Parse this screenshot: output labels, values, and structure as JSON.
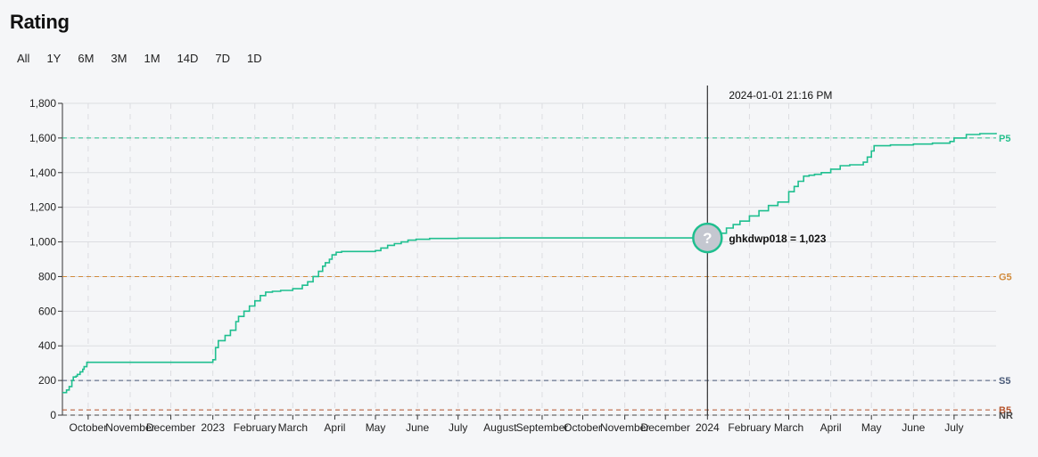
{
  "title": "Rating",
  "ranges": [
    "All",
    "1Y",
    "6M",
    "3M",
    "1M",
    "14D",
    "7D",
    "1D"
  ],
  "colors": {
    "line": "#1fbf8f",
    "P5": "#27c08d",
    "G5": "#d18a3a",
    "S5": "#4a5a78",
    "B5": "#b5522a",
    "NR": "#444444",
    "grid": "#dcdde1",
    "cursor": "#333333"
  },
  "tooltip": {
    "date": "2024-01-01 21:16 PM",
    "label": "ghkdwp018 = 1,023",
    "marker_icon": "question-mark-icon",
    "marker_symbol": "?"
  },
  "chart_data": {
    "type": "line",
    "xlabel": "",
    "ylabel": "",
    "ylim": [
      0,
      1800
    ],
    "yticks": [
      0,
      200,
      400,
      600,
      800,
      1000,
      1200,
      1400,
      1600,
      1800
    ],
    "ytick_labels": [
      "0",
      "200",
      "400",
      "600",
      "800",
      "1,000",
      "1,200",
      "1,400",
      "1,600",
      "1,800"
    ],
    "xlim": [
      "2022-09-12",
      "2024-08-01"
    ],
    "xticks": [
      {
        "date": "2022-10-01",
        "label": "October"
      },
      {
        "date": "2022-11-01",
        "label": "November"
      },
      {
        "date": "2022-12-01",
        "label": "December"
      },
      {
        "date": "2023-01-01",
        "label": "2023"
      },
      {
        "date": "2023-02-01",
        "label": "February"
      },
      {
        "date": "2023-03-01",
        "label": "March"
      },
      {
        "date": "2023-04-01",
        "label": "April"
      },
      {
        "date": "2023-05-01",
        "label": "May"
      },
      {
        "date": "2023-06-01",
        "label": "June"
      },
      {
        "date": "2023-07-01",
        "label": "July"
      },
      {
        "date": "2023-08-01",
        "label": "August"
      },
      {
        "date": "2023-09-01",
        "label": "September"
      },
      {
        "date": "2023-10-01",
        "label": "October"
      },
      {
        "date": "2023-11-01",
        "label": "November"
      },
      {
        "date": "2023-12-01",
        "label": "December"
      },
      {
        "date": "2024-01-01",
        "label": "2024"
      },
      {
        "date": "2024-02-01",
        "label": "February"
      },
      {
        "date": "2024-03-01",
        "label": "March"
      },
      {
        "date": "2024-04-01",
        "label": "April"
      },
      {
        "date": "2024-05-01",
        "label": "May"
      },
      {
        "date": "2024-06-01",
        "label": "June"
      },
      {
        "date": "2024-07-01",
        "label": "July"
      }
    ],
    "thresholds": [
      {
        "label": "P5",
        "value": 1600
      },
      {
        "label": "G5",
        "value": 800
      },
      {
        "label": "S5",
        "value": 200
      },
      {
        "label": "B5",
        "value": 30
      },
      {
        "label": "NR",
        "value": 0
      }
    ],
    "grid": true,
    "series": [
      {
        "x": [
          "2022-09-12",
          "2022-09-15",
          "2022-09-17",
          "2022-09-19",
          "2022-09-20",
          "2022-09-22",
          "2022-09-23",
          "2022-09-25",
          "2022-09-27",
          "2022-09-28",
          "2022-09-30",
          "2022-10-01",
          "2022-11-01",
          "2022-12-01",
          "2022-12-31",
          "2023-01-01",
          "2023-01-03",
          "2023-01-05",
          "2023-01-10",
          "2023-01-14",
          "2023-01-18",
          "2023-01-20",
          "2023-01-24",
          "2023-01-28",
          "2023-02-01",
          "2023-02-05",
          "2023-02-09",
          "2023-02-14",
          "2023-02-20",
          "2023-03-01",
          "2023-03-08",
          "2023-03-12",
          "2023-03-16",
          "2023-03-20",
          "2023-03-23",
          "2023-03-25",
          "2023-03-28",
          "2023-03-30",
          "2023-04-02",
          "2023-04-06",
          "2023-04-10",
          "2023-04-20",
          "2023-05-01",
          "2023-05-05",
          "2023-05-10",
          "2023-05-15",
          "2023-05-20",
          "2023-05-25",
          "2023-05-31",
          "2023-06-10",
          "2023-07-01",
          "2023-08-01",
          "2023-09-01",
          "2023-10-01",
          "2023-11-01",
          "2023-12-01",
          "2024-01-01",
          "2024-01-05",
          "2024-01-10",
          "2024-01-15",
          "2024-01-20",
          "2024-01-25",
          "2024-02-01",
          "2024-02-08",
          "2024-02-15",
          "2024-02-22",
          "2024-03-01",
          "2024-03-05",
          "2024-03-08",
          "2024-03-12",
          "2024-03-16",
          "2024-03-20",
          "2024-03-25",
          "2024-04-01",
          "2024-04-08",
          "2024-04-15",
          "2024-04-25",
          "2024-04-28",
          "2024-05-01",
          "2024-05-03",
          "2024-05-15",
          "2024-06-01",
          "2024-06-15",
          "2024-06-22",
          "2024-06-28",
          "2024-07-01",
          "2024-07-10",
          "2024-07-20",
          "2024-08-01"
        ],
        "y": [
          130,
          145,
          165,
          200,
          220,
          225,
          235,
          250,
          265,
          280,
          305,
          305,
          305,
          305,
          305,
          320,
          390,
          430,
          460,
          490,
          540,
          570,
          600,
          630,
          660,
          690,
          710,
          715,
          720,
          730,
          750,
          770,
          800,
          830,
          860,
          880,
          900,
          925,
          940,
          945,
          945,
          945,
          950,
          965,
          980,
          990,
          1000,
          1010,
          1015,
          1020,
          1022,
          1023,
          1023,
          1023,
          1023,
          1023,
          1023,
          1030,
          1050,
          1080,
          1100,
          1120,
          1150,
          1180,
          1210,
          1230,
          1290,
          1320,
          1350,
          1380,
          1385,
          1390,
          1400,
          1420,
          1440,
          1445,
          1460,
          1490,
          1525,
          1555,
          1560,
          1565,
          1570,
          1570,
          1580,
          1600,
          1620,
          1625,
          1630
        ]
      }
    ]
  }
}
